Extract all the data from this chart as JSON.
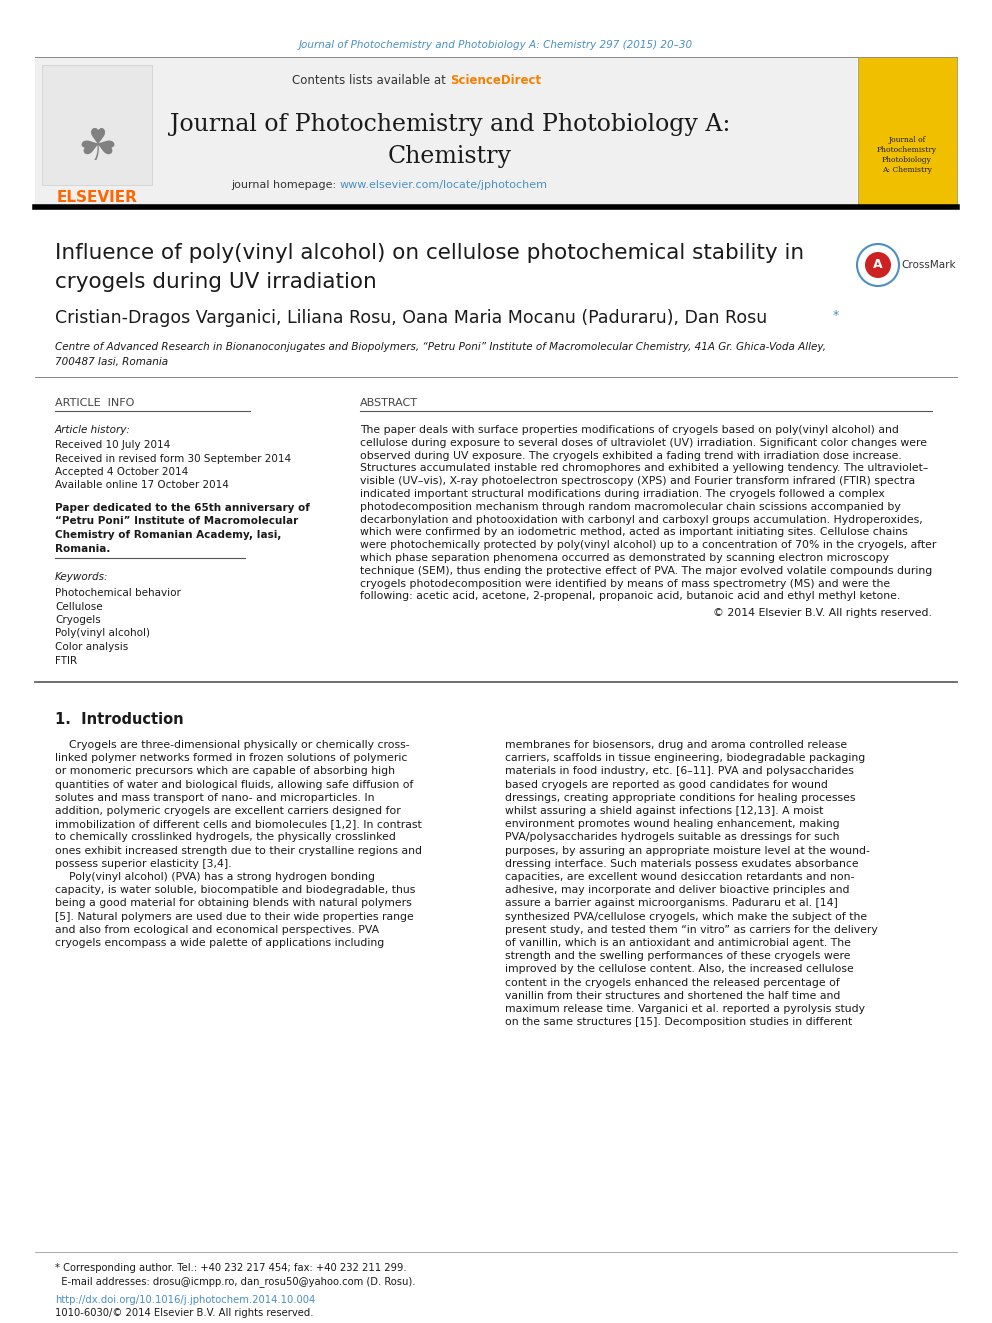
{
  "page_width": 9.92,
  "page_height": 13.23,
  "bg_color": "#ffffff",
  "journal_ref": "Journal of Photochemistry and Photobiology A: Chemistry 297 (2015) 20–30",
  "journal_ref_color": "#4a90c4",
  "header_bg": "#f0f0f0",
  "header_text1": "Contents lists available at ",
  "header_sciencedirect": "ScienceDirect",
  "header_sciencedirect_color": "#f77f00",
  "journal_homepage_prefix": "journal homepage: ",
  "journal_homepage_url": "www.elsevier.com/locate/jphotochem",
  "journal_homepage_color": "#4a90c4",
  "elsevier_color": "#ff6600",
  "article_info_title": "ARTICLE  INFO",
  "abstract_title": "ABSTRACT",
  "article_history_label": "Article history:",
  "received": "Received 10 July 2014",
  "revised": "Received in revised form 30 September 2014",
  "accepted": "Accepted 4 October 2014",
  "available": "Available online 17 October 2014",
  "dedication_bold": "Paper dedicated to the 65th anniversary of\n“Petru Poni” Institute of Macromolecular\nChemistry of Romanian Academy, Iasi,\nRomania.",
  "keywords_label": "Keywords:",
  "keywords": [
    "Photochemical behavior",
    "Cellulose",
    "Cryogels",
    "Poly(vinyl alcohol)",
    "Color analysis",
    "FTIR"
  ],
  "abstract_lines": [
    "The paper deals with surface properties modifications of cryogels based on poly(vinyl alcohol) and",
    "cellulose during exposure to several doses of ultraviolet (UV) irradiation. Significant color changes were",
    "observed during UV exposure. The cryogels exhibited a fading trend with irradiation dose increase.",
    "Structures accumulated instable red chromophores and exhibited a yellowing tendency. The ultraviolet–",
    "visible (UV–vis), X-ray photoelectron spectroscopy (XPS) and Fourier transform infrared (FTIR) spectra",
    "indicated important structural modifications during irradiation. The cryogels followed a complex",
    "photodecomposition mechanism through random macromolecular chain scissions accompanied by",
    "decarbonylation and photooxidation with carbonyl and carboxyl groups accumulation. Hydroperoxides,",
    "which were confirmed by an iodometric method, acted as important initiating sites. Cellulose chains",
    "were photochemically protected by poly(vinyl alcohol) up to a concentration of 70% in the cryogels, after",
    "which phase separation phenomena occurred as demonstrated by scanning electron microscopy",
    "technique (SEM), thus ending the protective effect of PVA. The major evolved volatile compounds during",
    "cryogels photodecomposition were identified by means of mass spectrometry (MS) and were the",
    "following: acetic acid, acetone, 2-propenal, propanoic acid, butanoic acid and ethyl methyl ketone."
  ],
  "copyright_line": "© 2014 Elsevier B.V. All rights reserved.",
  "section1_title": "1.  Introduction",
  "intro_col1_lines": [
    "    Cryogels are three-dimensional physically or chemically cross-",
    "linked polymer networks formed in frozen solutions of polymeric",
    "or monomeric precursors which are capable of absorbing high",
    "quantities of water and biological fluids, allowing safe diffusion of",
    "solutes and mass transport of nano- and microparticles. In",
    "addition, polymeric cryogels are excellent carriers designed for",
    "immobilization of different cells and biomolecules [1,2]. In contrast",
    "to chemically crosslinked hydrogels, the physically crosslinked",
    "ones exhibit increased strength due to their crystalline regions and",
    "possess superior elasticity [3,4].",
    "    Poly(vinyl alcohol) (PVA) has a strong hydrogen bonding",
    "capacity, is water soluble, biocompatible and biodegradable, thus",
    "being a good material for obtaining blends with natural polymers",
    "[5]. Natural polymers are used due to their wide properties range",
    "and also from ecological and economical perspectives. PVA",
    "cryogels encompass a wide palette of applications including"
  ],
  "intro_col2_lines": [
    "membranes for biosensors, drug and aroma controlled release",
    "carriers, scaffolds in tissue engineering, biodegradable packaging",
    "materials in food industry, etc. [6–11]. PVA and polysaccharides",
    "based cryogels are reported as good candidates for wound",
    "dressings, creating appropriate conditions for healing processes",
    "whilst assuring a shield against infections [12,13]. A moist",
    "environment promotes wound healing enhancement, making",
    "PVA/polysaccharides hydrogels suitable as dressings for such",
    "purposes, by assuring an appropriate moisture level at the wound-",
    "dressing interface. Such materials possess exudates absorbance",
    "capacities, are excellent wound desiccation retardants and non-",
    "adhesive, may incorporate and deliver bioactive principles and",
    "assure a barrier against microorganisms. Paduraru et al. [14]",
    "synthesized PVA/cellulose cryogels, which make the subject of the",
    "present study, and tested them “in vitro” as carriers for the delivery",
    "of vanillin, which is an antioxidant and antimicrobial agent. The",
    "strength and the swelling performances of these cryogels were",
    "improved by the cellulose content. Also, the increased cellulose",
    "content in the cryogels enhanced the released percentage of",
    "vanillin from their structures and shortened the half time and",
    "maximum release time. Varganici et al. reported a pyrolysis study",
    "on the same structures [15]. Decomposition studies in different"
  ],
  "footer_line1": "* Corresponding author. Tel.: +40 232 217 454; fax: +40 232 211 299.",
  "footer_line2": "  E-mail addresses: drosu@icmpp.ro, dan_rosu50@yahoo.com (D. Rosu).",
  "doi_text": "http://dx.doi.org/10.1016/j.jphotochem.2014.10.004",
  "doi_color": "#4a90c4",
  "issn_text": "1010-6030/© 2014 Elsevier B.V. All rights reserved.",
  "link_color": "#4a90c4"
}
